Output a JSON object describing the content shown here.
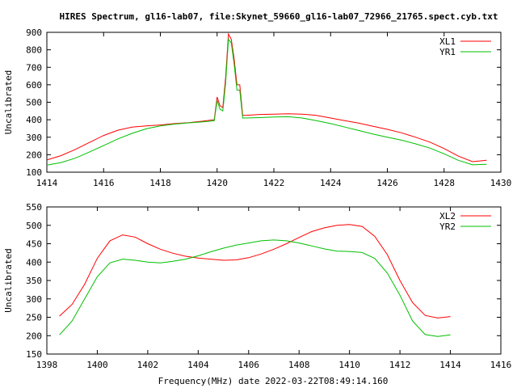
{
  "figure_title": "HIRES Spectrum, gl16-lab07, file:Skynet_59660_gl16-lab07_72966_21765.spect.cyb.txt",
  "x_label": "Frequency(MHz) date 2022-03-22T08:49:14.160",
  "chart_data": [
    {
      "type": "line",
      "ylabel": "Uncalibrated",
      "xlim": [
        1414,
        1430
      ],
      "ylim": [
        100,
        900
      ],
      "xticks": [
        "1414",
        "1416",
        "1418",
        "1420",
        "1422",
        "1424",
        "1426",
        "1428",
        "1430"
      ],
      "yticks": [
        "100",
        "200",
        "300",
        "400",
        "500",
        "600",
        "700",
        "800",
        "900"
      ],
      "grid": false,
      "legend": "top-right",
      "series": [
        {
          "name": "XL1",
          "color": "#ff0000",
          "x": [
            1414.0,
            1414.5,
            1415.0,
            1415.5,
            1416.0,
            1416.5,
            1417.0,
            1417.5,
            1418.0,
            1418.5,
            1419.0,
            1419.5,
            1419.9,
            1420.0,
            1420.1,
            1420.2,
            1420.3,
            1420.4,
            1420.5,
            1420.6,
            1420.7,
            1420.8,
            1420.9,
            1421.0,
            1421.5,
            1422.0,
            1422.5,
            1423.0,
            1423.5,
            1424.0,
            1424.5,
            1425.0,
            1425.5,
            1426.0,
            1426.5,
            1427.0,
            1427.5,
            1428.0,
            1428.5,
            1429.0,
            1429.5
          ],
          "y": [
            170,
            195,
            230,
            270,
            310,
            340,
            358,
            365,
            370,
            378,
            383,
            392,
            400,
            530,
            480,
            470,
            640,
            890,
            860,
            750,
            600,
            600,
            425,
            425,
            430,
            432,
            434,
            432,
            425,
            410,
            395,
            380,
            362,
            345,
            325,
            300,
            272,
            235,
            192,
            160,
            168
          ]
        },
        {
          "name": "YR1",
          "color": "#00c000",
          "x": [
            1414.0,
            1414.5,
            1415.0,
            1415.5,
            1416.0,
            1416.5,
            1417.0,
            1417.5,
            1418.0,
            1418.5,
            1419.0,
            1419.5,
            1419.9,
            1420.0,
            1420.1,
            1420.2,
            1420.3,
            1420.4,
            1420.5,
            1420.6,
            1420.7,
            1420.8,
            1420.9,
            1421.0,
            1421.5,
            1422.0,
            1422.5,
            1423.0,
            1423.5,
            1424.0,
            1424.5,
            1425.0,
            1425.5,
            1426.0,
            1426.5,
            1427.0,
            1427.5,
            1428.0,
            1428.5,
            1429.0,
            1429.5
          ],
          "y": [
            140,
            155,
            180,
            215,
            252,
            290,
            322,
            348,
            365,
            375,
            382,
            388,
            394,
            510,
            460,
            450,
            610,
            860,
            840,
            720,
            570,
            570,
            410,
            410,
            412,
            416,
            417,
            410,
            395,
            378,
            358,
            338,
            318,
            300,
            283,
            262,
            238,
            205,
            168,
            142,
            145
          ]
        }
      ]
    },
    {
      "type": "line",
      "ylabel": "Uncalibrated",
      "xlim": [
        1398,
        1416
      ],
      "ylim": [
        150,
        550
      ],
      "xticks": [
        "1398",
        "1400",
        "1402",
        "1404",
        "1406",
        "1408",
        "1410",
        "1412",
        "1414",
        "1416"
      ],
      "yticks": [
        "150",
        "200",
        "250",
        "300",
        "350",
        "400",
        "450",
        "500",
        "550"
      ],
      "grid": false,
      "legend": "top-right",
      "series": [
        {
          "name": "XL2",
          "color": "#ff0000",
          "x": [
            1398.5,
            1399.0,
            1399.5,
            1400.0,
            1400.5,
            1401.0,
            1401.5,
            1402.0,
            1402.5,
            1403.0,
            1403.5,
            1404.0,
            1404.5,
            1405.0,
            1405.5,
            1406.0,
            1406.5,
            1407.0,
            1407.5,
            1408.0,
            1408.5,
            1409.0,
            1409.5,
            1410.0,
            1410.5,
            1411.0,
            1411.5,
            1412.0,
            1412.5,
            1413.0,
            1413.5,
            1414.0
          ],
          "y": [
            253,
            285,
            340,
            410,
            458,
            474,
            468,
            450,
            435,
            424,
            416,
            411,
            408,
            405,
            406,
            412,
            422,
            435,
            450,
            467,
            483,
            493,
            500,
            502,
            497,
            470,
            420,
            350,
            290,
            255,
            248,
            252
          ]
        },
        {
          "name": "YR2",
          "color": "#00c000",
          "x": [
            1398.5,
            1399.0,
            1399.5,
            1400.0,
            1400.5,
            1401.0,
            1401.5,
            1402.0,
            1402.5,
            1403.0,
            1403.5,
            1404.0,
            1404.5,
            1405.0,
            1405.5,
            1406.0,
            1406.5,
            1407.0,
            1407.5,
            1408.0,
            1408.5,
            1409.0,
            1409.5,
            1410.0,
            1410.5,
            1411.0,
            1411.5,
            1412.0,
            1412.5,
            1413.0,
            1413.5,
            1414.0
          ],
          "y": [
            202,
            240,
            300,
            360,
            398,
            408,
            405,
            400,
            398,
            402,
            408,
            417,
            428,
            438,
            446,
            452,
            458,
            460,
            458,
            452,
            444,
            436,
            430,
            429,
            426,
            410,
            370,
            310,
            240,
            203,
            198,
            202
          ]
        }
      ]
    }
  ]
}
